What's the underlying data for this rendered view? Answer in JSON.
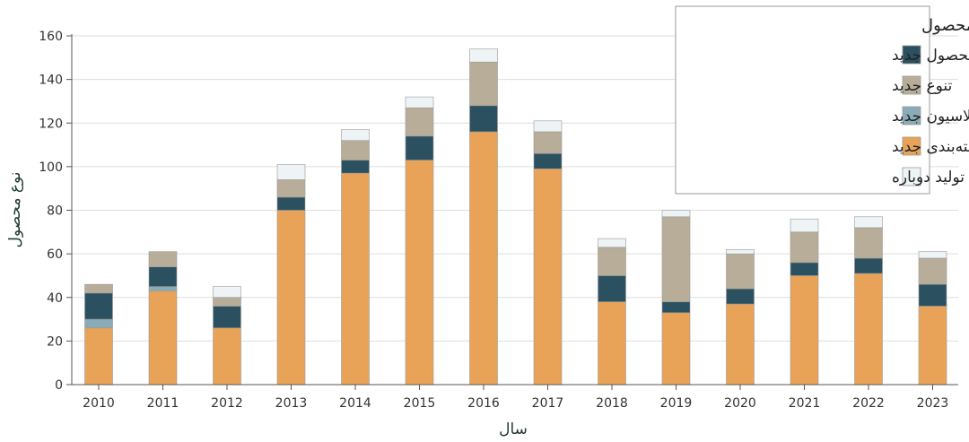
{
  "chart_data": {
    "type": "bar",
    "stacked": true,
    "categories": [
      "2010",
      "2011",
      "2012",
      "2013",
      "2014",
      "2015",
      "2016",
      "2017",
      "2018",
      "2019",
      "2020",
      "2021",
      "2022",
      "2023"
    ],
    "series": [
      {
        "name": "بسته‌بندی جدید",
        "color": "#e8a358",
        "values": [
          26,
          43,
          26,
          80,
          97,
          103,
          116,
          99,
          38,
          33,
          37,
          50,
          51,
          36
        ]
      },
      {
        "name": "فرمولاسیون جدید",
        "color": "#8aabb8",
        "values": [
          4,
          2,
          0,
          0,
          0,
          0,
          0,
          0,
          0,
          0,
          0,
          0,
          0,
          0
        ]
      },
      {
        "name": "محصول جدید",
        "color": "#2b5161",
        "values": [
          12,
          9,
          10,
          6,
          6,
          11,
          12,
          7,
          12,
          5,
          7,
          6,
          7,
          10
        ]
      },
      {
        "name": "تنوع جدید",
        "color": "#b8ad98",
        "values": [
          4,
          7,
          4,
          8,
          9,
          13,
          20,
          10,
          13,
          39,
          16,
          14,
          14,
          12
        ]
      },
      {
        "name": "تولید دوباره",
        "color": "#eef3f6",
        "values": [
          0,
          0,
          5,
          7,
          5,
          5,
          6,
          5,
          4,
          3,
          2,
          6,
          5,
          3
        ]
      }
    ],
    "legend_order": [
      2,
      3,
      1,
      0,
      4
    ],
    "legend_title": "نوع محصول",
    "legend_position": "top-right",
    "xlabel": "سال",
    "ylabel": "نوع محصول",
    "ylim": [
      0,
      160
    ],
    "yticks": [
      0,
      20,
      40,
      60,
      80,
      100,
      120,
      140,
      160
    ],
    "grid": true
  }
}
